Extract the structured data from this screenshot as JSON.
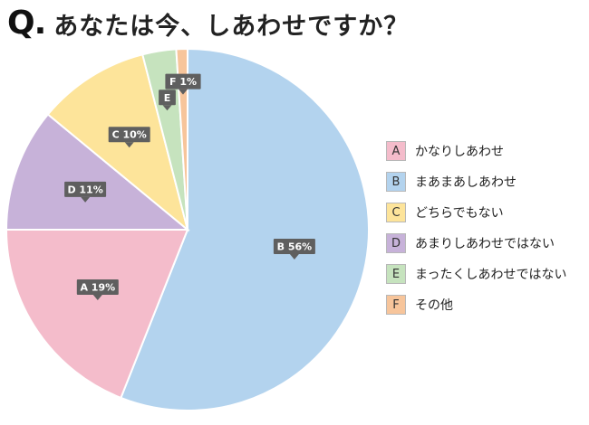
{
  "header": {
    "q_mark": "Q",
    "q_dot": ".",
    "title": "あなたは今、しあわせですか？"
  },
  "chart_data": {
    "type": "pie",
    "title": "あなたは今、しあわせですか？",
    "start": "12 o'clock, clockwise",
    "legend_position": "right",
    "slices": [
      {
        "letter": "B",
        "label": "まあまあしあわせ",
        "value": 56,
        "data_label": "B 56%",
        "color": "#b3d3ee"
      },
      {
        "letter": "A",
        "label": "かなりしあわせ",
        "value": 19,
        "data_label": "A 19%",
        "color": "#f4bccb"
      },
      {
        "letter": "D",
        "label": "あまりしあわせではない",
        "value": 11,
        "data_label": "D 11%",
        "color": "#c7b2d9"
      },
      {
        "letter": "C",
        "label": "どちらでもない",
        "value": 10,
        "data_label": "C 10%",
        "color": "#fde49a"
      },
      {
        "letter": "E",
        "label": "まったくしあわせではない",
        "value": 3,
        "data_label": "E",
        "color": "#c6e3be"
      },
      {
        "letter": "F",
        "label": "その他",
        "value": 1,
        "data_label": "F 1%",
        "color": "#f7c59b"
      }
    ]
  },
  "legend": {
    "items": [
      {
        "letter": "A",
        "label": "かなりしあわせ",
        "color": "#f4bccb"
      },
      {
        "letter": "B",
        "label": "まあまあしあわせ",
        "color": "#b3d3ee"
      },
      {
        "letter": "C",
        "label": "どちらでもない",
        "color": "#fde49a"
      },
      {
        "letter": "D",
        "label": "あまりしあわせではない",
        "color": "#c7b2d9"
      },
      {
        "letter": "E",
        "label": "まったくしあわせではない",
        "color": "#c6e3be"
      },
      {
        "letter": "F",
        "label": "その他",
        "color": "#f7c59b"
      }
    ]
  }
}
